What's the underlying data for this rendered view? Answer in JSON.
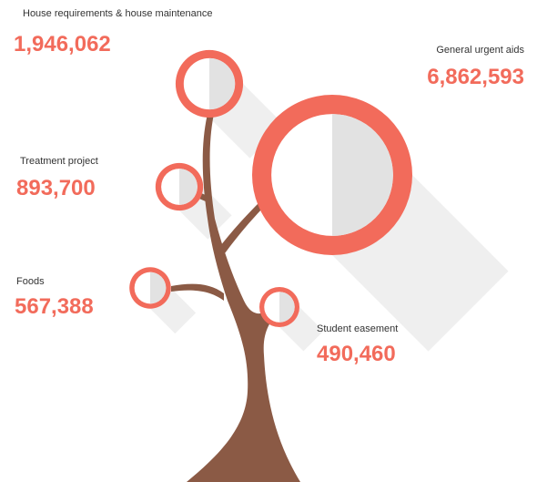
{
  "chart_data": {
    "type": "tree",
    "categories": [
      "House requirements & house maintenance",
      "General urgent aids",
      "Treatment project",
      "Foods",
      "Student easement"
    ],
    "values": [
      1946062,
      6862593,
      893700,
      567388,
      490460
    ],
    "value_labels": [
      "1,946,062",
      "6,862,593",
      "893,700",
      "567,388",
      "490,460"
    ],
    "color": "#f26b5b"
  }
}
